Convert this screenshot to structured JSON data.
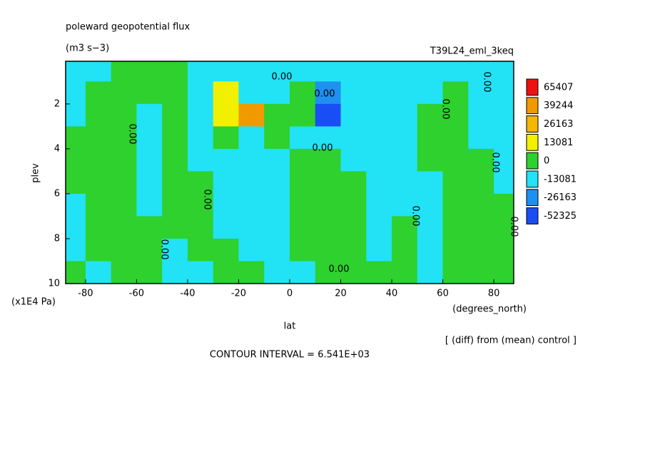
{
  "chart_data": {
    "type": "contourf",
    "title": "poleward geopotential flux",
    "subtitle": "(m3 s−3)",
    "run_label": "T39L24_eml_3keq",
    "x_label": "lat",
    "x_unit": "(degrees_north)",
    "y_label": "plev",
    "y_unit": "(x1E4 Pa)",
    "note": "[ (diff) from (mean) control ]",
    "contour_interval": "CONTOUR INTERVAL = 6.541E+03",
    "contour_labels": [
      "0.00",
      "0.00",
      "0.00",
      "0.00",
      "0.00",
      "0.00",
      "0.00",
      "0.00",
      "0.00",
      "0.00",
      "0.00",
      "0.00"
    ],
    "xlim": [
      -87.8,
      87.8
    ],
    "xticks": [
      -80,
      -60,
      -40,
      -20,
      0,
      20,
      40,
      60,
      80
    ],
    "ylim": [
      10,
      0.1
    ],
    "yticks": [
      2,
      4,
      6,
      8,
      10
    ],
    "levels": [
      65407,
      39244,
      26163,
      13081,
      0,
      -13081,
      -26163,
      -52325
    ],
    "colors": [
      "#ee1111",
      "#f09a00",
      "#f5b800",
      "#f0f000",
      "#2ed12e",
      "#22e2f5",
      "#1e90f0",
      "#1a4ef5"
    ],
    "x": [
      -85,
      -75,
      -65,
      -55,
      -45,
      -35,
      -25,
      -15,
      -5,
      5,
      15,
      25,
      35,
      45,
      55,
      65,
      75,
      85
    ],
    "y": [
      0.5,
      1.5,
      2.5,
      3.5,
      4.5,
      5.5,
      6.5,
      7.5,
      8.5,
      9.5
    ],
    "z": [
      [
        -6000,
        -6000,
        6000,
        6000,
        6000,
        -6000,
        -6000,
        -6000,
        -6000,
        -6000,
        -6000,
        -6000,
        -6000,
        -6000,
        -6000,
        -6000,
        -6000,
        -6000
      ],
      [
        -6000,
        6000,
        6000,
        6000,
        6000,
        -6000,
        20000,
        -6000,
        -6000,
        6000,
        -15000,
        -6000,
        -6000,
        -6000,
        -6000,
        6000,
        -6000,
        -6000
      ],
      [
        -6000,
        6000,
        6000,
        -6000,
        6000,
        -6000,
        20000,
        45000,
        6000,
        6000,
        -30000,
        -6000,
        -6000,
        -6000,
        6000,
        6000,
        -6000,
        -6000
      ],
      [
        6000,
        6000,
        6000,
        -6000,
        6000,
        -6000,
        6000,
        -6000,
        6000,
        -6000,
        -6000,
        -6000,
        -6000,
        -6000,
        6000,
        6000,
        -6000,
        -6000
      ],
      [
        6000,
        6000,
        6000,
        -6000,
        6000,
        -6000,
        -6000,
        -6000,
        -6000,
        6000,
        6000,
        -6000,
        -6000,
        -6000,
        6000,
        6000,
        6000,
        -6000
      ],
      [
        6000,
        6000,
        6000,
        -6000,
        6000,
        6000,
        -6000,
        -6000,
        -6000,
        6000,
        6000,
        6000,
        -6000,
        -6000,
        -6000,
        6000,
        6000,
        -6000
      ],
      [
        -6000,
        6000,
        6000,
        -6000,
        6000,
        6000,
        -6000,
        -6000,
        -6000,
        6000,
        6000,
        6000,
        -6000,
        -6000,
        -6000,
        6000,
        6000,
        6000
      ],
      [
        -6000,
        6000,
        6000,
        6000,
        6000,
        6000,
        -6000,
        -6000,
        -6000,
        6000,
        6000,
        6000,
        -6000,
        6000,
        -6000,
        6000,
        6000,
        6000
      ],
      [
        -6000,
        6000,
        6000,
        6000,
        -6000,
        6000,
        6000,
        -6000,
        -6000,
        6000,
        6000,
        6000,
        -6000,
        6000,
        -6000,
        6000,
        6000,
        6000
      ],
      [
        6000,
        -6000,
        6000,
        6000,
        -6000,
        -6000,
        6000,
        6000,
        -6000,
        -6000,
        6000,
        6000,
        6000,
        6000,
        -6000,
        6000,
        6000,
        6000
      ]
    ]
  }
}
